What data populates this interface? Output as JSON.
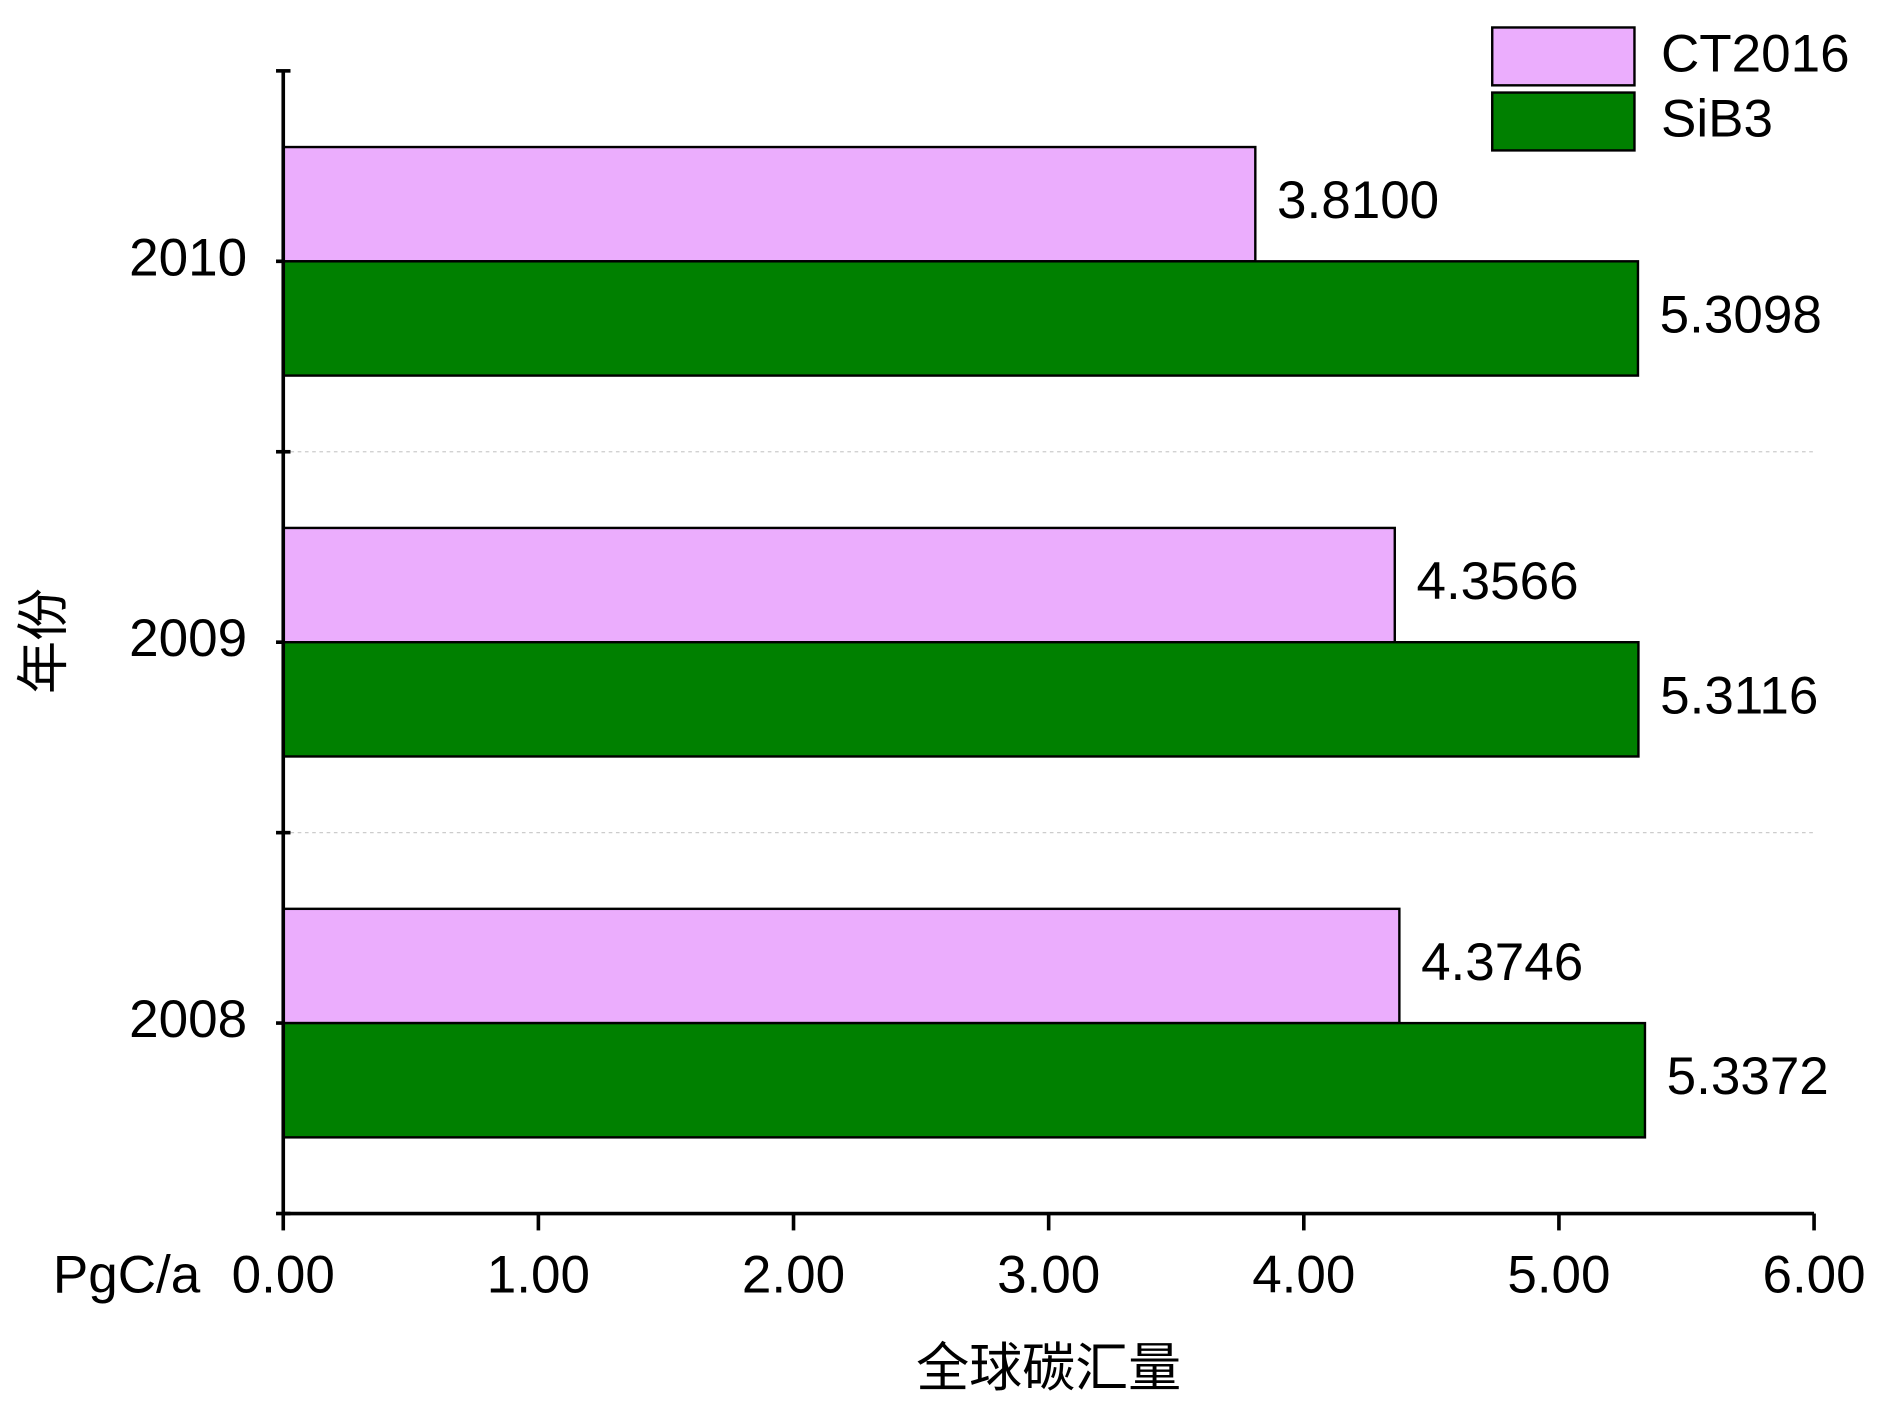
{
  "chart_data": {
    "type": "hbar",
    "x_axis_label": "全球碳汇量",
    "x_unit_label": "PgC/a",
    "y_axis_label": "年份",
    "categories": [
      "2008",
      "2009",
      "2010"
    ],
    "series": [
      {
        "name": "CT2016",
        "color": "#ebadfd",
        "values": [
          4.3746,
          4.3566,
          3.81
        ],
        "value_labels": [
          "4.3746",
          "4.3566",
          "3.8100"
        ]
      },
      {
        "name": "SiB3",
        "color": "#008000",
        "values": [
          5.3372,
          5.3116,
          5.3098
        ],
        "value_labels": [
          "5.3372",
          "5.3116",
          "5.3098"
        ]
      }
    ],
    "value_label_color": "#008000",
    "xlim": [
      0,
      6
    ],
    "xticks": [
      {
        "value": 0,
        "label": "0.00"
      },
      {
        "value": 1,
        "label": "1.00"
      },
      {
        "value": 2,
        "label": "2.00"
      },
      {
        "value": 3,
        "label": "3.00"
      },
      {
        "value": 4,
        "label": "4.00"
      },
      {
        "value": 5,
        "label": "5.00"
      },
      {
        "value": 6,
        "label": "6.00"
      }
    ],
    "legend": "top-right"
  }
}
